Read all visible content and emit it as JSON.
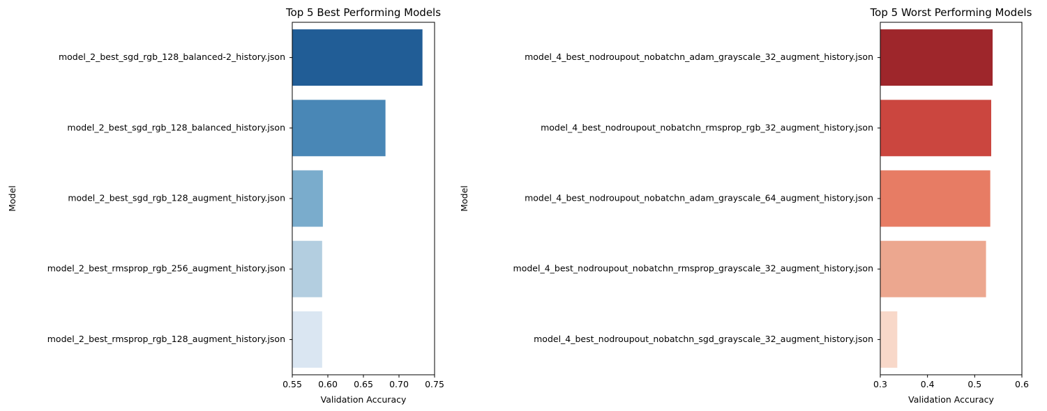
{
  "chart_data": [
    {
      "type": "bar",
      "orientation": "horizontal",
      "title": "Top 5 Best Performing Models",
      "xlabel": "Validation Accuracy",
      "ylabel": "Model",
      "xlim": [
        0.55,
        0.75
      ],
      "xticks": [
        "0.55",
        "0.60",
        "0.65",
        "0.70",
        "0.75"
      ],
      "xtick_values": [
        0.55,
        0.6,
        0.65,
        0.7,
        0.75
      ],
      "categories": [
        "model_2_best_sgd_rgb_128_balanced-2_history.json",
        "model_2_best_sgd_rgb_128_balanced_history.json",
        "model_2_best_sgd_rgb_128_augment_history.json",
        "model_2_best_rmsprop_rgb_256_augment_history.json",
        "model_2_best_rmsprop_rgb_128_augment_history.json"
      ],
      "values": [
        0.733,
        0.681,
        0.593,
        0.592,
        0.592
      ],
      "colors": [
        "#215d96",
        "#4987b6",
        "#7aaccc",
        "#b3cee0",
        "#dae6f2"
      ]
    },
    {
      "type": "bar",
      "orientation": "horizontal",
      "title": "Top 5 Worst Performing Models",
      "xlabel": "Validation Accuracy",
      "ylabel": "Model",
      "xlim": [
        0.3,
        0.6
      ],
      "xticks": [
        "0.3",
        "0.4",
        "0.5",
        "0.6"
      ],
      "xtick_values": [
        0.3,
        0.4,
        0.5,
        0.6
      ],
      "categories": [
        "model_4_best_nodroupout_nobatchn_adam_grayscale_32_augment_history.json",
        "model_4_best_nodroupout_nobatchn_rmsprop_rgb_32_augment_history.json",
        "model_4_best_nodroupout_nobatchn_adam_grayscale_64_augment_history.json",
        "model_4_best_nodroupout_nobatchn_rmsprop_grayscale_32_augment_history.json",
        "model_4_best_nodroupout_nobatchn_sgd_grayscale_32_augment_history.json"
      ],
      "values": [
        0.538,
        0.535,
        0.533,
        0.524,
        0.336
      ],
      "colors": [
        "#9e262b",
        "#cb463f",
        "#e77c64",
        "#eca78f",
        "#f8d8c9"
      ]
    }
  ]
}
